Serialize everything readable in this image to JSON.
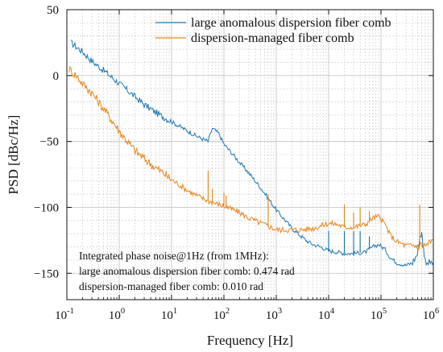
{
  "colors": {
    "blue": "#1f77b4",
    "orange": "#e8871e",
    "grid": "#c8c8c8",
    "axis": "#111111"
  },
  "chart_data": {
    "type": "line",
    "xlabel": "Frequency [Hz]",
    "ylabel": "PSD [dBc/Hz]",
    "xscale": "log",
    "xlim": [
      0.1,
      1000000
    ],
    "ylim": [
      -170,
      50
    ],
    "x_ticks": [
      {
        "value": 0.1,
        "base": "10",
        "exp": "-1"
      },
      {
        "value": 1,
        "base": "10",
        "exp": "0"
      },
      {
        "value": 10,
        "base": "10",
        "exp": "1"
      },
      {
        "value": 100,
        "base": "10",
        "exp": "2"
      },
      {
        "value": 1000,
        "base": "10",
        "exp": "3"
      },
      {
        "value": 10000,
        "base": "10",
        "exp": "4"
      },
      {
        "value": 100000,
        "base": "10",
        "exp": "5"
      },
      {
        "value": 1000000,
        "base": "10",
        "exp": "6"
      }
    ],
    "y_ticks": [
      50,
      0,
      -50,
      -100,
      -150
    ],
    "grid": true,
    "legend_position": "top-right",
    "series": [
      {
        "name": "large anomalous dispersion fiber comb",
        "color": "#1f77b4",
        "points": [
          [
            0.12,
            25
          ],
          [
            0.2,
            18
          ],
          [
            0.3,
            11
          ],
          [
            0.5,
            4
          ],
          [
            1,
            -6
          ],
          [
            2,
            -16
          ],
          [
            3,
            -22
          ],
          [
            5,
            -28
          ],
          [
            10,
            -35
          ],
          [
            20,
            -42
          ],
          [
            30,
            -46
          ],
          [
            50,
            -50
          ],
          [
            60,
            -40
          ],
          [
            80,
            -44
          ],
          [
            100,
            -52
          ],
          [
            150,
            -60
          ],
          [
            200,
            -66
          ],
          [
            300,
            -74
          ],
          [
            500,
            -85
          ],
          [
            700,
            -93
          ],
          [
            1000,
            -102
          ],
          [
            1500,
            -110
          ],
          [
            2000,
            -116
          ],
          [
            3000,
            -122
          ],
          [
            4000,
            -126
          ],
          [
            5000,
            -128
          ],
          [
            7000,
            -130
          ],
          [
            9000,
            -132
          ],
          [
            10000,
            -133
          ],
          [
            15000,
            -134
          ],
          [
            20000,
            -135
          ],
          [
            30000,
            -135
          ],
          [
            50000,
            -134
          ],
          [
            70000,
            -130
          ],
          [
            90000,
            -128
          ],
          [
            120000,
            -132
          ],
          [
            150000,
            -138
          ],
          [
            200000,
            -142
          ],
          [
            300000,
            -144
          ],
          [
            400000,
            -142
          ],
          [
            500000,
            -135
          ],
          [
            550000,
            -122
          ],
          [
            600000,
            -120
          ],
          [
            650000,
            -132
          ],
          [
            700000,
            -140
          ],
          [
            800000,
            -142
          ],
          [
            1000000,
            -142
          ]
        ],
        "spikes": [
          [
            10000,
            -118
          ],
          [
            20000,
            -118
          ],
          [
            30000,
            -118
          ],
          [
            40000,
            -118
          ],
          [
            60000,
            -122
          ]
        ]
      },
      {
        "name": "dispersion-managed fiber comb",
        "color": "#e8871e",
        "points": [
          [
            0.11,
            5
          ],
          [
            0.15,
            0
          ],
          [
            0.2,
            -6
          ],
          [
            0.3,
            -13
          ],
          [
            0.5,
            -25
          ],
          [
            0.7,
            -33
          ],
          [
            1,
            -42
          ],
          [
            1.5,
            -51
          ],
          [
            2,
            -57
          ],
          [
            3,
            -63
          ],
          [
            5,
            -70
          ],
          [
            7,
            -74
          ],
          [
            10,
            -79
          ],
          [
            20,
            -87
          ],
          [
            30,
            -91
          ],
          [
            50,
            -95
          ],
          [
            100,
            -99
          ],
          [
            200,
            -104
          ],
          [
            300,
            -108
          ],
          [
            500,
            -112
          ],
          [
            700,
            -114
          ],
          [
            1000,
            -117
          ],
          [
            2000,
            -117
          ],
          [
            3000,
            -117
          ],
          [
            5000,
            -116
          ],
          [
            7000,
            -114
          ],
          [
            10000,
            -112
          ],
          [
            15000,
            -113
          ],
          [
            20000,
            -115
          ],
          [
            30000,
            -115
          ],
          [
            50000,
            -113
          ],
          [
            70000,
            -108
          ],
          [
            90000,
            -107
          ],
          [
            120000,
            -113
          ],
          [
            150000,
            -121
          ],
          [
            200000,
            -126
          ],
          [
            300000,
            -129
          ],
          [
            500000,
            -129
          ],
          [
            700000,
            -129
          ],
          [
            1000000,
            -125
          ]
        ],
        "spikes": [
          [
            50,
            -72
          ],
          [
            60,
            -86
          ],
          [
            100,
            -89
          ],
          [
            110,
            -91
          ],
          [
            120,
            -99
          ],
          [
            700,
            -90
          ],
          [
            20000,
            -98
          ],
          [
            30000,
            -104
          ],
          [
            40000,
            -100
          ],
          [
            60000,
            -103
          ],
          [
            550000,
            -98
          ]
        ]
      }
    ],
    "annotations": [
      "Integrated phase noise@1Hz (from 1MHz):",
      "large anomalous dispersion fiber comb: 0.474 rad",
      "dispersion-managed fiber comb: 0.010 rad"
    ]
  }
}
